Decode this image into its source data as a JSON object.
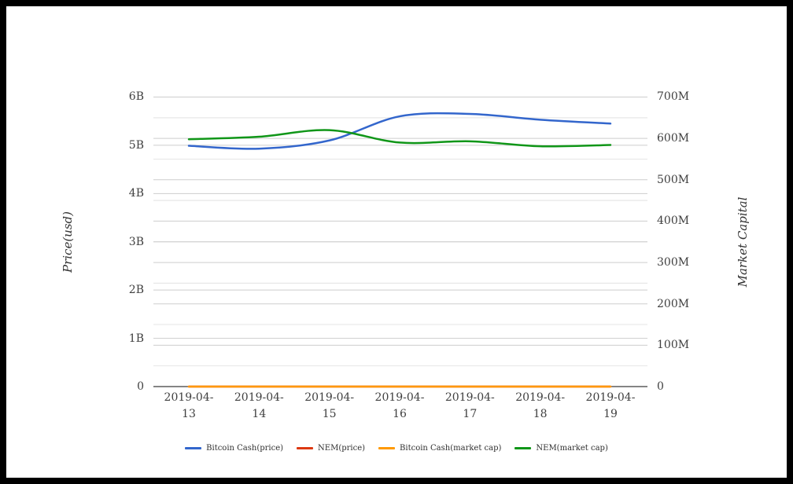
{
  "chart_data": {
    "type": "line",
    "title": "",
    "x": [
      "2019-04-13",
      "2019-04-14",
      "2019-04-15",
      "2019-04-16",
      "2019-04-17",
      "2019-04-18",
      "2019-04-19"
    ],
    "left_axis": {
      "title": "Price(usd)",
      "ticks": [
        "0",
        "1B",
        "2B",
        "3B",
        "4B",
        "5B",
        "6B"
      ],
      "range": [
        0,
        6000000000
      ]
    },
    "right_axis": {
      "title": "Market Capital",
      "ticks": [
        "0",
        "100M",
        "200M",
        "300M",
        "400M",
        "500M",
        "600M",
        "700M"
      ],
      "range": [
        0,
        700000000
      ]
    },
    "grid": true,
    "legend_position": "bottom",
    "series": [
      {
        "name": "Bitcoin Cash(price)",
        "color": "#3366cc",
        "axis": "left",
        "unit": "B",
        "values": [
          4.99,
          4.93,
          5.1,
          5.6,
          5.65,
          5.53,
          5.45
        ]
      },
      {
        "name": "NEM(price)",
        "color": "#dc3912",
        "axis": "left",
        "unit": "B",
        "values": [
          0,
          0,
          0,
          0,
          0,
          0,
          0
        ]
      },
      {
        "name": "Bitcoin Cash(market cap)",
        "color": "#ff9900",
        "axis": "right",
        "unit": "M",
        "values": [
          0,
          0,
          0,
          0,
          0,
          0,
          0
        ]
      },
      {
        "name": "NEM(market cap)",
        "color": "#109618",
        "axis": "right",
        "unit": "M",
        "values": [
          598,
          604,
          620,
          590,
          593,
          581,
          584
        ]
      }
    ],
    "colors": {
      "gridline_major": "#cdcdcd",
      "gridline_minor": "#e6e6e6",
      "axis_baseline": "#3b3b3b",
      "text": "#404040"
    }
  }
}
